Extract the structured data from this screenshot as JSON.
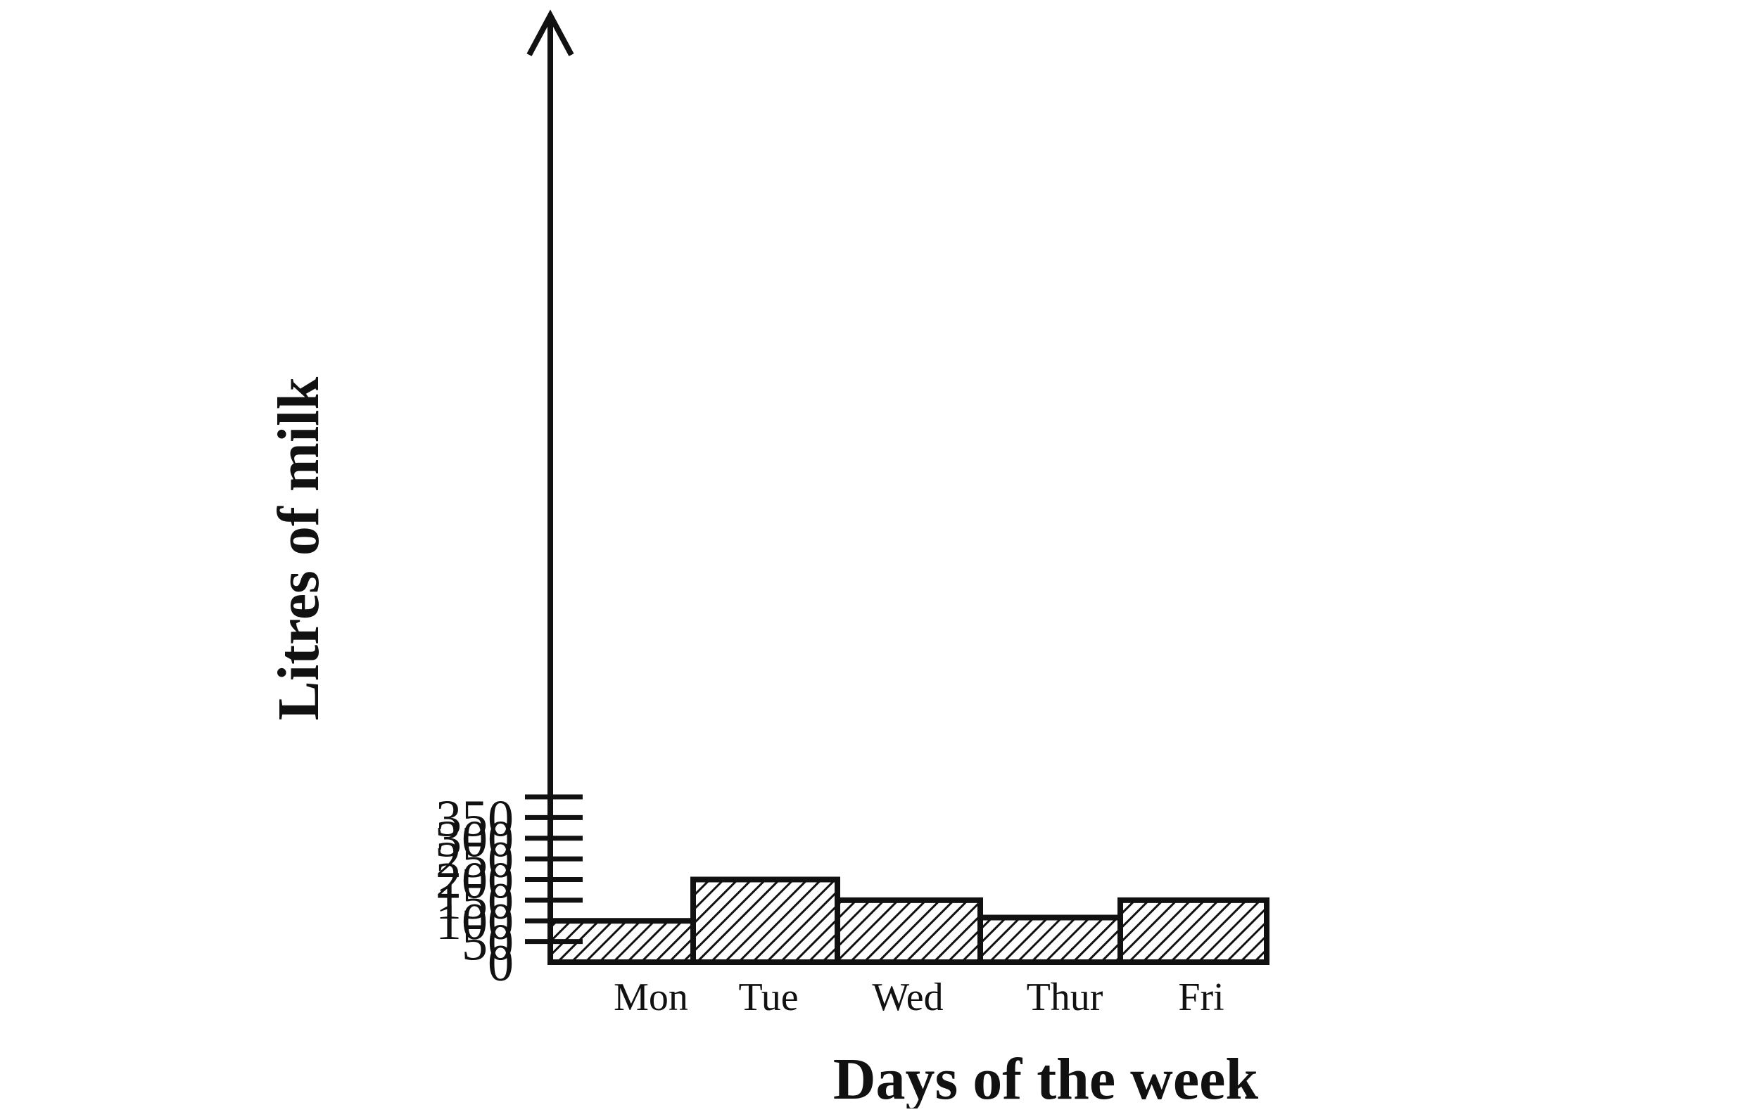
{
  "chart_data": {
    "type": "bar",
    "title": "",
    "xlabel": "Days of the week",
    "ylabel": "Litres of milk",
    "categories": [
      "Mon",
      "Tue",
      "Wed",
      "Thur",
      "Fri"
    ],
    "values": [
      100,
      200,
      150,
      108,
      150
    ],
    "yticks": [
      0,
      50,
      100,
      150,
      200,
      250,
      300,
      350,
      400
    ],
    "ytick_labels": [
      "0",
      "50",
      "100",
      "150",
      "200",
      "250",
      "300",
      "350",
      ""
    ],
    "ylim": [
      0,
      450
    ],
    "grid": false,
    "legend": "none",
    "bar_style": "diagonal-hatch",
    "colors": {
      "ink": "#111111",
      "background": "#ffffff"
    }
  }
}
